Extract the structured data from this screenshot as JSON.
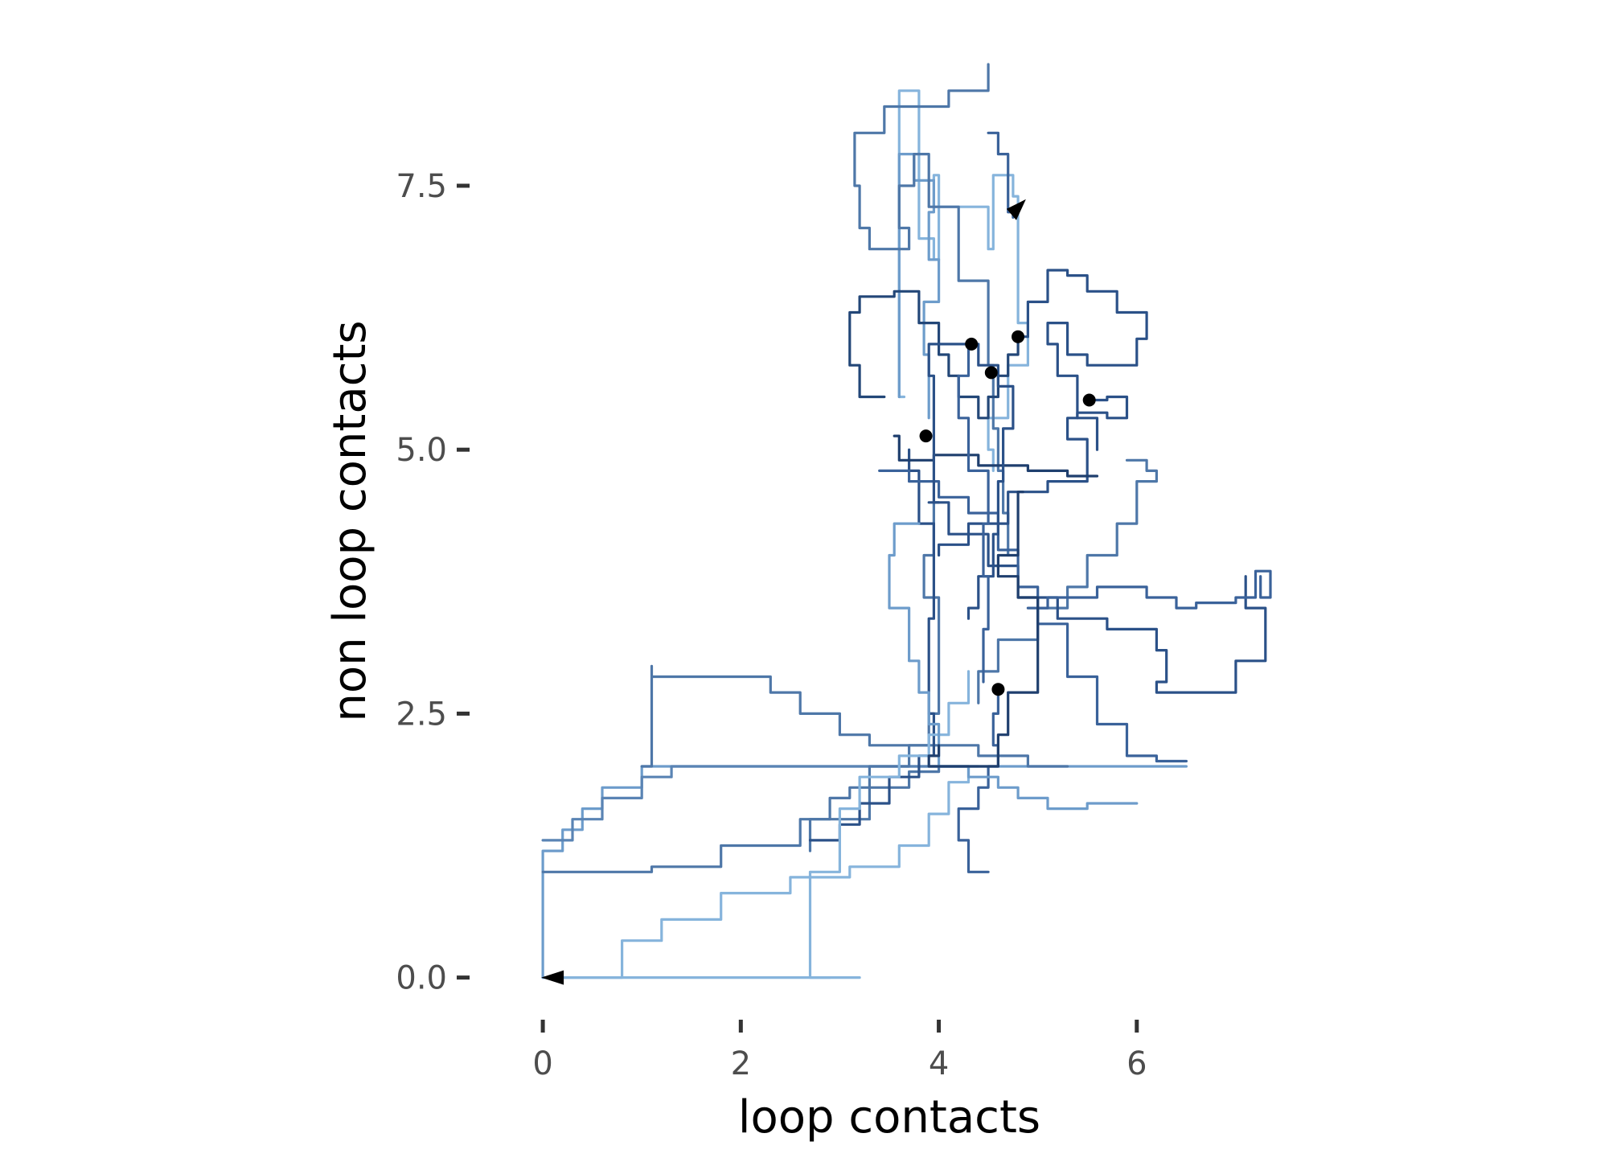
{
  "chart_data": {
    "type": "line",
    "title": "",
    "xlabel": "loop contacts",
    "ylabel": "non loop contacts",
    "xlim": [
      -0.35,
      7.35
    ],
    "ylim": [
      -0.3,
      8.65
    ],
    "x_ticks": [
      0,
      2,
      4,
      6
    ],
    "x_tick_labels": [
      "0",
      "2",
      "4",
      "6"
    ],
    "y_ticks": [
      0,
      2.5,
      5,
      7.5
    ],
    "y_tick_labels": [
      "0.0",
      "2.5",
      "5.0",
      "7.5"
    ],
    "grid": false,
    "legend": "none",
    "colors": {
      "dark": "#1f3f6e",
      "mid": "#4e77a8",
      "light": "#86b4dc",
      "marker": "#000000",
      "tick": "#333333"
    },
    "start_points": [
      {
        "x": 0.0,
        "y": 0.0,
        "direction": "left"
      },
      {
        "x": 4.75,
        "y": 7.25,
        "direction": "up-right"
      }
    ],
    "end_points": [
      {
        "x": 4.33,
        "y": 6.0
      },
      {
        "x": 4.53,
        "y": 5.73
      },
      {
        "x": 4.8,
        "y": 6.07
      },
      {
        "x": 5.52,
        "y": 5.47
      },
      {
        "x": 3.87,
        "y": 5.13
      },
      {
        "x": 4.6,
        "y": 2.73
      }
    ],
    "series": [
      {
        "color": "#86b4dc",
        "x": [
          0.0,
          0.5,
          0.8,
          1.2,
          1.8,
          2.5,
          3.1,
          3.6,
          3.9,
          4.1,
          4.3,
          4.4
        ],
        "y": [
          0.0,
          0.0,
          0.35,
          0.55,
          0.8,
          0.95,
          1.05,
          1.25,
          1.55,
          1.85,
          2.0,
          2.0
        ]
      },
      {
        "color": "#86b4dc",
        "x": [
          0.0,
          0.0,
          3.0,
          3.0,
          3.2
        ],
        "y": [
          0.0,
          0.0,
          0.0,
          0.0,
          0.0
        ]
      },
      {
        "color": "#6d9ccb",
        "x": [
          0.0,
          0.0,
          0.2,
          0.4,
          0.6,
          1.0,
          1.5,
          2.5,
          3.5,
          4.2,
          4.5,
          5.0,
          5.5,
          6.2,
          6.5
        ],
        "y": [
          0.0,
          1.2,
          1.4,
          1.6,
          1.8,
          2.0,
          2.0,
          2.0,
          2.0,
          2.0,
          2.0,
          2.0,
          2.0,
          2.0,
          2.0
        ]
      },
      {
        "color": "#4e77a8",
        "x": [
          0.0,
          0.0,
          0.6,
          1.1,
          1.8,
          2.6,
          3.3,
          3.7,
          4.0,
          4.3
        ],
        "y": [
          1.0,
          1.0,
          1.0,
          1.05,
          1.25,
          1.5,
          1.8,
          1.95,
          2.0,
          2.0
        ]
      },
      {
        "color": "#5a84b4",
        "x": [
          0.0,
          0.3,
          0.6,
          1.0,
          1.3,
          2.0,
          2.7,
          3.2,
          3.6,
          4.0
        ],
        "y": [
          1.3,
          1.5,
          1.7,
          1.9,
          2.0,
          2.0,
          2.0,
          2.0,
          2.0,
          2.0
        ]
      },
      {
        "color": "#4e77a8",
        "x": [
          1.0,
          1.1,
          1.1,
          1.8,
          2.3,
          2.6,
          3.0,
          3.3,
          3.9,
          4.4,
          4.9,
          5.3
        ],
        "y": [
          2.0,
          2.95,
          2.85,
          2.85,
          2.7,
          2.5,
          2.3,
          2.2,
          2.2,
          2.1,
          2.0,
          2.0
        ]
      },
      {
        "color": "#4e77a8",
        "x": [
          2.7,
          2.7,
          2.9,
          3.1,
          3.3,
          3.7,
          3.9,
          4.0,
          4.0,
          3.85,
          3.95
        ],
        "y": [
          1.2,
          1.5,
          1.7,
          1.8,
          2.0,
          2.2,
          2.5,
          3.0,
          3.6,
          4.0,
          4.5
        ]
      },
      {
        "color": "#2b5188",
        "x": [
          2.7,
          3.0,
          3.2,
          3.5,
          3.8,
          3.95,
          3.9,
          3.95,
          3.8,
          3.7
        ],
        "y": [
          1.3,
          1.45,
          1.65,
          1.9,
          2.1,
          2.5,
          3.4,
          4.3,
          4.8,
          5.0
        ]
      },
      {
        "color": "#86b4dc",
        "x": [
          2.9,
          2.7,
          2.7,
          3.0,
          3.2,
          3.6,
          3.9,
          4.1,
          4.3
        ],
        "y": [
          0.0,
          0.3,
          1.0,
          1.6,
          1.9,
          2.1,
          2.3,
          2.6,
          2.9
        ]
      },
      {
        "color": "#3a629a",
        "x": [
          4.5,
          4.3,
          4.2,
          4.4,
          4.5,
          4.6,
          4.55,
          4.6
        ],
        "y": [
          1.0,
          1.3,
          1.6,
          1.8,
          2.0,
          2.2,
          2.5,
          2.73
        ]
      },
      {
        "color": "#6d9ccb",
        "x": [
          3.8,
          3.55,
          3.5,
          3.7,
          3.8,
          3.9,
          4.0,
          4.3,
          4.6,
          4.8,
          5.1,
          5.5,
          6.0
        ],
        "y": [
          4.3,
          4.0,
          3.5,
          3.0,
          2.7,
          2.4,
          2.0,
          1.9,
          1.8,
          1.7,
          1.6,
          1.65,
          1.65
        ]
      },
      {
        "color": "#86b4dc",
        "x": [
          3.65,
          3.6,
          3.75,
          3.8,
          3.8,
          3.95,
          4.0,
          3.95,
          4.5,
          4.55,
          4.75,
          4.8,
          4.9,
          4.7,
          4.5,
          4.55
        ],
        "y": [
          5.5,
          8.4,
          8.4,
          7.8,
          7.0,
          6.8,
          7.6,
          7.3,
          6.9,
          7.6,
          7.4,
          6.2,
          5.8,
          5.3,
          5.0,
          4.8
        ]
      },
      {
        "color": "#6d9ccb",
        "x": [
          3.6,
          3.6,
          3.75,
          3.95,
          3.9,
          4.0,
          3.85,
          3.9
        ],
        "y": [
          5.5,
          7.8,
          7.55,
          7.25,
          6.8,
          6.4,
          5.9,
          5.3
        ]
      },
      {
        "color": "#4e77a8",
        "x": [
          4.5,
          4.5,
          4.1,
          3.45,
          3.15,
          3.2,
          3.3,
          3.5,
          3.7,
          3.6,
          3.75,
          3.9,
          4.2,
          4.5,
          4.5,
          4.55,
          4.55,
          4.6,
          4.65,
          4.7
        ],
        "y": [
          8.65,
          8.4,
          8.25,
          8.0,
          7.5,
          7.1,
          6.9,
          6.9,
          7.1,
          7.5,
          7.8,
          7.3,
          6.6,
          6.2,
          5.8,
          5.5,
          5.2,
          4.8,
          4.4,
          4.0
        ]
      },
      {
        "color": "#3a629a",
        "x": [
          4.5,
          4.6,
          4.7,
          4.7,
          4.75
        ],
        "y": [
          8.0,
          7.8,
          7.6,
          7.25,
          7.2
        ]
      },
      {
        "color": "#234778",
        "x": [
          3.45,
          3.2,
          3.1,
          3.2,
          3.5,
          3.55,
          3.8,
          4.0,
          4.1,
          4.2,
          4.4,
          4.5,
          4.6,
          4.7,
          4.8
        ],
        "y": [
          5.5,
          5.8,
          6.3,
          6.45,
          6.45,
          6.5,
          6.2,
          5.9,
          5.7,
          5.5,
          5.3,
          5.5,
          5.7,
          5.9,
          6.07
        ]
      },
      {
        "color": "#2b5188",
        "x": [
          4.8,
          4.9,
          5.1,
          5.3,
          5.5,
          5.8,
          6.1,
          6.0,
          5.7,
          5.5,
          5.3,
          5.1,
          5.2,
          5.4,
          5.6
        ],
        "y": [
          6.07,
          6.4,
          6.7,
          6.65,
          6.5,
          6.3,
          6.05,
          5.8,
          5.8,
          5.9,
          6.2,
          6.0,
          5.7,
          5.3,
          5.0
        ]
      },
      {
        "color": "#2b5188",
        "x": [
          5.52,
          5.7,
          5.9,
          5.7,
          5.4,
          5.3,
          5.5,
          5.5,
          5.1,
          4.7,
          4.3,
          4.0
        ],
        "y": [
          5.47,
          5.5,
          5.3,
          5.35,
          5.3,
          5.1,
          5.0,
          4.7,
          4.6,
          4.3,
          4.1,
          4.0
        ]
      },
      {
        "color": "#4e77a8",
        "x": [
          5.9,
          6.1,
          6.2,
          6.0,
          6.0,
          5.8,
          5.5,
          5.3,
          5.0,
          4.6,
          4.4
        ],
        "y": [
          4.9,
          4.8,
          4.7,
          4.5,
          4.3,
          4.0,
          3.7,
          3.5,
          3.2,
          2.9,
          2.6
        ]
      },
      {
        "color": "#2b5188",
        "x": [
          3.9,
          4.1,
          4.5,
          4.8,
          5.2,
          5.7,
          6.2,
          6.3,
          6.2,
          6.3,
          6.8,
          7.0,
          7.3,
          7.1
        ],
        "y": [
          4.5,
          4.2,
          3.9,
          3.6,
          3.4,
          3.3,
          3.1,
          2.8,
          2.7,
          2.7,
          2.7,
          3.0,
          3.5,
          3.8
        ]
      },
      {
        "color": "#3a629a",
        "x": [
          4.9,
          5.1,
          5.6,
          6.1,
          6.4,
          6.6,
          7.0,
          7.2,
          7.35,
          7.25
        ],
        "y": [
          3.5,
          3.6,
          3.7,
          3.6,
          3.5,
          3.55,
          3.6,
          3.85,
          3.6,
          3.8
        ]
      },
      {
        "color": "#3a629a",
        "x": [
          3.4,
          3.7,
          4.0,
          4.3,
          4.6,
          4.8,
          5.0,
          5.3,
          5.6,
          5.9,
          6.2,
          6.5
        ],
        "y": [
          4.8,
          4.7,
          4.55,
          4.4,
          4.05,
          3.7,
          3.35,
          2.85,
          2.4,
          2.1,
          2.05,
          2.05
        ]
      },
      {
        "color": "#1f3f6e",
        "x": [
          3.55,
          3.6,
          3.95,
          4.4,
          4.9,
          5.3,
          5.6
        ],
        "y": [
          5.13,
          4.9,
          4.95,
          4.85,
          4.8,
          4.75,
          4.75
        ]
      },
      {
        "color": "#2b5188",
        "x": [
          4.0,
          3.95,
          3.9,
          4.2,
          4.4,
          4.6,
          4.75,
          4.65,
          4.6,
          4.55,
          4.4,
          4.3
        ],
        "y": [
          4.5,
          5.7,
          6.0,
          6.0,
          5.8,
          5.6,
          5.2,
          4.7,
          4.2,
          3.8,
          3.5,
          3.4
        ]
      },
      {
        "color": "#3a629a",
        "x": [
          4.35,
          4.3,
          4.2,
          4.3,
          4.5,
          4.45,
          4.5,
          4.45
        ],
        "y": [
          6.0,
          5.7,
          5.3,
          4.8,
          4.3,
          3.8,
          3.3,
          2.8
        ]
      },
      {
        "color": "#1f3f6e",
        "x": [
          4.85,
          4.8,
          4.6,
          4.8,
          5.0,
          5.0,
          4.7,
          4.6,
          4.3,
          4.0,
          3.9,
          4.0
        ],
        "y": [
          4.6,
          4.0,
          3.8,
          3.6,
          3.2,
          2.7,
          2.3,
          2.0,
          2.0,
          2.0,
          2.1,
          2.2
        ]
      }
    ]
  }
}
